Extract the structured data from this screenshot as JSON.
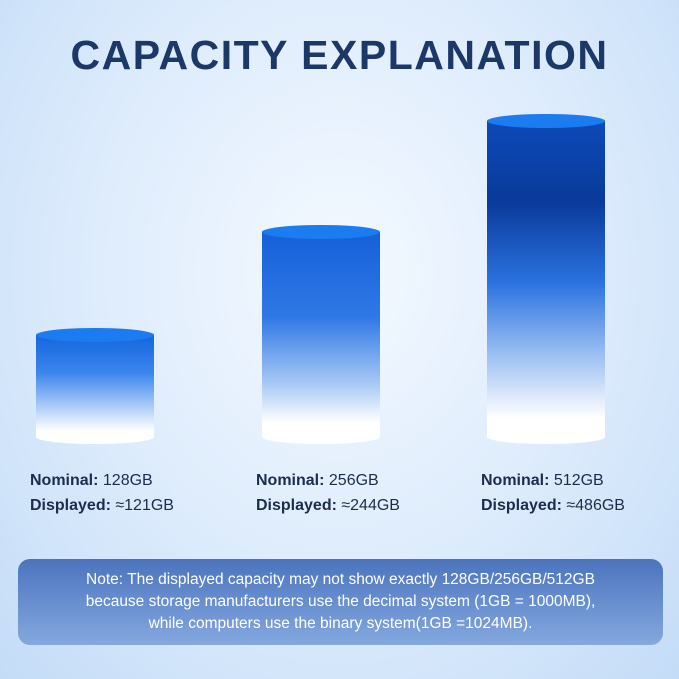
{
  "title": "CAPACITY EXPLANATION",
  "items": [
    {
      "nominal_label": "Nominal:",
      "nominal": "128GB",
      "displayed_label": "Displayed:",
      "displayed": "≈121GB"
    },
    {
      "nominal_label": "Nominal:",
      "nominal": "256GB",
      "displayed_label": "Displayed:",
      "displayed": "≈244GB"
    },
    {
      "nominal_label": "Nominal:",
      "nominal": "512GB",
      "displayed_label": "Displayed:",
      "displayed": "≈486GB"
    }
  ],
  "note": [
    "Note: The displayed capacity may not show exactly 128GB/256GB/512GB",
    "because storage manufacturers use the decimal system (1GB = 1000MB),",
    "while computers use the binary system(1GB =1024MB)."
  ],
  "colors": {
    "title": "#1c3868",
    "cylinder_top": "#1a7cf0",
    "cylinder_dark": "#0a3a9a",
    "note_bg": "#4b74bd"
  }
}
